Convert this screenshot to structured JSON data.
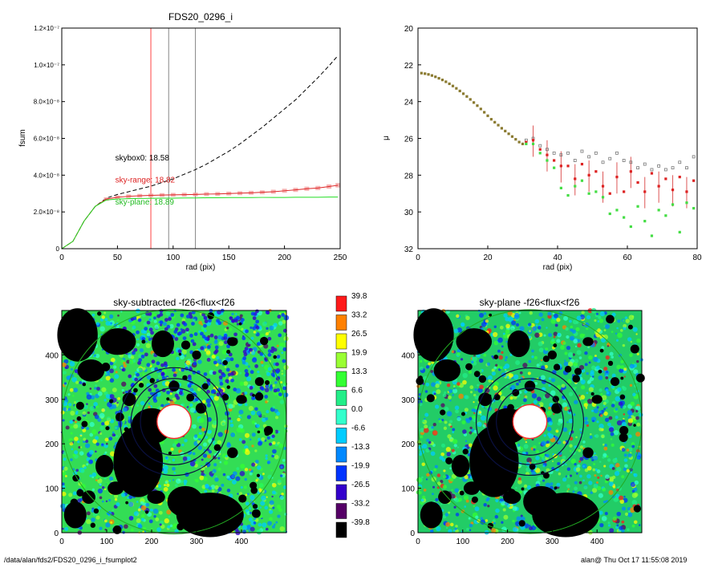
{
  "footer": {
    "path": "/data/alan/fds2/FDS20_0296_i_fsumplot2",
    "user_time": "alan@  Thu Oct 17 11:55:08 2019"
  },
  "colors": {
    "axis": "#000000",
    "curve_sky_range": "#dd2222",
    "curve_sky_plane": "#22dd22",
    "curve_skybox": "#000000",
    "vline_main": "#ff4444",
    "vline_aux": "#888888",
    "map_mask": "#000000",
    "annulus_outer": "#22aa22"
  },
  "chart_data": [
    {
      "type": "line",
      "title": "FDS20_0296_i",
      "xlabel": "rad (pix)",
      "ylabel": "fsum",
      "xlim": [
        0,
        250
      ],
      "ylim": [
        0,
        1.2e-07
      ],
      "x_ticks": [
        "0",
        "50",
        "100",
        "150",
        "200",
        "250"
      ],
      "y_ticks": [
        {
          "v": 0,
          "label": "0"
        },
        {
          "v": 2e-08,
          "label": "2.0×10⁻⁸"
        },
        {
          "v": 4e-08,
          "label": "4.0×10⁻⁸"
        },
        {
          "v": 6e-08,
          "label": "6.0×10⁻⁸"
        },
        {
          "v": 8e-08,
          "label": "8.0×10⁻⁸"
        },
        {
          "v": 1e-07,
          "label": "1.0×10⁻⁷"
        },
        {
          "v": 1.2e-07,
          "label": "1.2×10⁻⁷"
        }
      ],
      "vlines": [
        {
          "x": 80,
          "color": "#ff4444"
        },
        {
          "x": 96,
          "color": "#888888"
        },
        {
          "x": 120,
          "color": "#888888"
        }
      ],
      "series": [
        {
          "name": "skybox0",
          "style": "dashed",
          "x": [
            0,
            10,
            20,
            30,
            40,
            50,
            60,
            70,
            80,
            90,
            100,
            110,
            120,
            130,
            140,
            150,
            160,
            170,
            180,
            190,
            200,
            210,
            220,
            230,
            240,
            248
          ],
          "y": [
            0,
            4e-09,
            1.5e-08,
            2.3e-08,
            2.75e-08,
            2.95e-08,
            3.1e-08,
            3.25e-08,
            3.4e-08,
            3.6e-08,
            3.8e-08,
            4.05e-08,
            4.3e-08,
            4.6e-08,
            4.95e-08,
            5.3e-08,
            5.7e-08,
            6.15e-08,
            6.6e-08,
            7.1e-08,
            7.6e-08,
            8.1e-08,
            8.7e-08,
            9.3e-08,
            9.95e-08,
            1.05e-07
          ]
        },
        {
          "name": "sky-range",
          "style": "solid-errorbars",
          "x": [
            0,
            10,
            20,
            30,
            40,
            50,
            60,
            70,
            80,
            90,
            100,
            110,
            120,
            130,
            140,
            150,
            160,
            170,
            180,
            190,
            200,
            210,
            220,
            230,
            240,
            248
          ],
          "y": [
            0,
            4e-09,
            1.5e-08,
            2.3e-08,
            2.7e-08,
            2.8e-08,
            2.85e-08,
            2.88e-08,
            2.9e-08,
            2.92e-08,
            2.93e-08,
            2.94e-08,
            2.95e-08,
            2.97e-08,
            2.98e-08,
            3e-08,
            3.02e-08,
            3.04e-08,
            3.07e-08,
            3.1e-08,
            3.15e-08,
            3.2e-08,
            3.26e-08,
            3.3e-08,
            3.38e-08,
            3.45e-08
          ]
        },
        {
          "name": "sky-plane",
          "style": "solid",
          "x": [
            0,
            10,
            20,
            30,
            40,
            50,
            60,
            70,
            80,
            90,
            100,
            110,
            120,
            130,
            140,
            150,
            160,
            170,
            180,
            190,
            200,
            210,
            220,
            230,
            240,
            248
          ],
          "y": [
            0,
            4e-09,
            1.5e-08,
            2.3e-08,
            2.65e-08,
            2.7e-08,
            2.72e-08,
            2.73e-08,
            2.74e-08,
            2.75e-08,
            2.75e-08,
            2.76e-08,
            2.76e-08,
            2.77e-08,
            2.77e-08,
            2.78e-08,
            2.78e-08,
            2.78e-08,
            2.79e-08,
            2.79e-08,
            2.79e-08,
            2.8e-08,
            2.8e-08,
            2.8e-08,
            2.81e-08,
            2.81e-08
          ]
        }
      ],
      "annotations": [
        {
          "text": "skybox0: 18.58",
          "color": "#000000",
          "x": 48,
          "y": 4.8e-08
        },
        {
          "text": "sky-range: 18.82",
          "color": "#dd2222",
          "x": 48,
          "y": 3.6e-08
        },
        {
          "text": "sky-plane: 18.89",
          "color": "#22bb22",
          "x": 48,
          "y": 2.4e-08
        }
      ]
    },
    {
      "type": "scatter",
      "title": "",
      "xlabel": "rad (pix)",
      "ylabel": "μ",
      "xlim": [
        0,
        80
      ],
      "ylim": [
        32,
        20
      ],
      "x_ticks": [
        "0",
        "20",
        "40",
        "60",
        "80"
      ],
      "y_ticks": [
        "20",
        "22",
        "24",
        "26",
        "28",
        "30",
        "32"
      ],
      "series": [
        {
          "name": "inner-profile",
          "color": "#8a7a30",
          "x": [
            1,
            2,
            3,
            4,
            5,
            6,
            7,
            8,
            9,
            10,
            11,
            12,
            13,
            14,
            15,
            16,
            17,
            18,
            19,
            20,
            21,
            22,
            23,
            24,
            25,
            26,
            27,
            28,
            29,
            30
          ],
          "y": [
            22.45,
            22.48,
            22.52,
            22.58,
            22.65,
            22.73,
            22.82,
            22.92,
            23.03,
            23.15,
            23.28,
            23.42,
            23.57,
            23.72,
            23.88,
            24.05,
            24.22,
            24.4,
            24.58,
            24.77,
            24.96,
            25.12,
            25.28,
            25.45,
            25.6,
            25.75,
            25.9,
            26.05,
            26.2,
            26.3
          ]
        },
        {
          "name": "skybox",
          "color": "#777777",
          "x": [
            31,
            33,
            35,
            37,
            39,
            41,
            43,
            45,
            47,
            49,
            51,
            53,
            55,
            57,
            59,
            61,
            63,
            65,
            67,
            69,
            71,
            73,
            75,
            77,
            79
          ],
          "y": [
            26.1,
            26.0,
            26.4,
            26.6,
            26.8,
            26.9,
            26.8,
            27.2,
            26.7,
            27.0,
            26.8,
            27.3,
            27.1,
            26.8,
            27.2,
            27.3,
            27.6,
            27.4,
            27.7,
            27.5,
            27.7,
            27.6,
            27.3,
            27.6,
            27.0
          ]
        },
        {
          "name": "sky-range",
          "color": "#dd2222",
          "x": [
            31,
            33,
            35,
            37,
            39,
            41,
            43,
            45,
            47,
            49,
            51,
            53,
            55,
            57,
            59,
            61,
            63,
            65,
            67,
            69,
            71,
            73,
            75,
            77,
            79
          ],
          "y": [
            26.2,
            26.1,
            26.6,
            26.9,
            27.2,
            27.5,
            27.5,
            28.2,
            27.4,
            28.0,
            27.8,
            28.6,
            29.0,
            28.1,
            28.9,
            27.8,
            28.4,
            28.9,
            27.9,
            28.6,
            28.2,
            28.8,
            28.1,
            28.9,
            28.3
          ]
        },
        {
          "name": "sky-plane",
          "color": "#44dd44",
          "x": [
            31,
            33,
            35,
            37,
            39,
            41,
            43,
            45,
            47,
            49,
            51,
            53,
            55,
            57,
            59,
            61,
            63,
            65,
            67,
            69,
            71,
            73,
            75,
            77,
            79
          ],
          "y": [
            26.3,
            26.3,
            26.8,
            27.2,
            27.6,
            28.7,
            29.1,
            28.6,
            28.3,
            29.0,
            28.9,
            29.2,
            30.1,
            29.9,
            30.3,
            30.8,
            29.7,
            30.5,
            31.3,
            29.9,
            30.2,
            29.6,
            31.1,
            29.5,
            29.8
          ]
        }
      ]
    },
    {
      "type": "heatmap",
      "title": "sky-subtracted -f26<flux<f26",
      "xlim": [
        0,
        500
      ],
      "ylim": [
        0,
        500
      ],
      "x_ticks": [
        "0",
        "100",
        "200",
        "300",
        "400"
      ],
      "y_ticks": [
        "0",
        "100",
        "200",
        "300",
        "400"
      ]
    },
    {
      "type": "heatmap",
      "title": "sky-plane -f26<flux<f26",
      "xlim": [
        0,
        500
      ],
      "ylim": [
        0,
        500
      ],
      "x_ticks": [
        "0",
        "100",
        "200",
        "300",
        "400"
      ],
      "y_ticks": [
        "0",
        "100",
        "200",
        "300",
        "400"
      ]
    }
  ],
  "colorbar": {
    "labels": [
      "39.8",
      "33.2",
      "26.5",
      "19.9",
      "13.3",
      "6.6",
      "0.0",
      "-6.6",
      "-13.3",
      "-19.9",
      "-26.5",
      "-33.2",
      "-39.8"
    ],
    "colors": [
      "#ff1a1a",
      "#ff8000",
      "#ffff00",
      "#99ff33",
      "#33ff33",
      "#22ee88",
      "#33ffcc",
      "#00ccff",
      "#0088ff",
      "#0033ff",
      "#3300cc",
      "#550066",
      "#000000"
    ]
  }
}
